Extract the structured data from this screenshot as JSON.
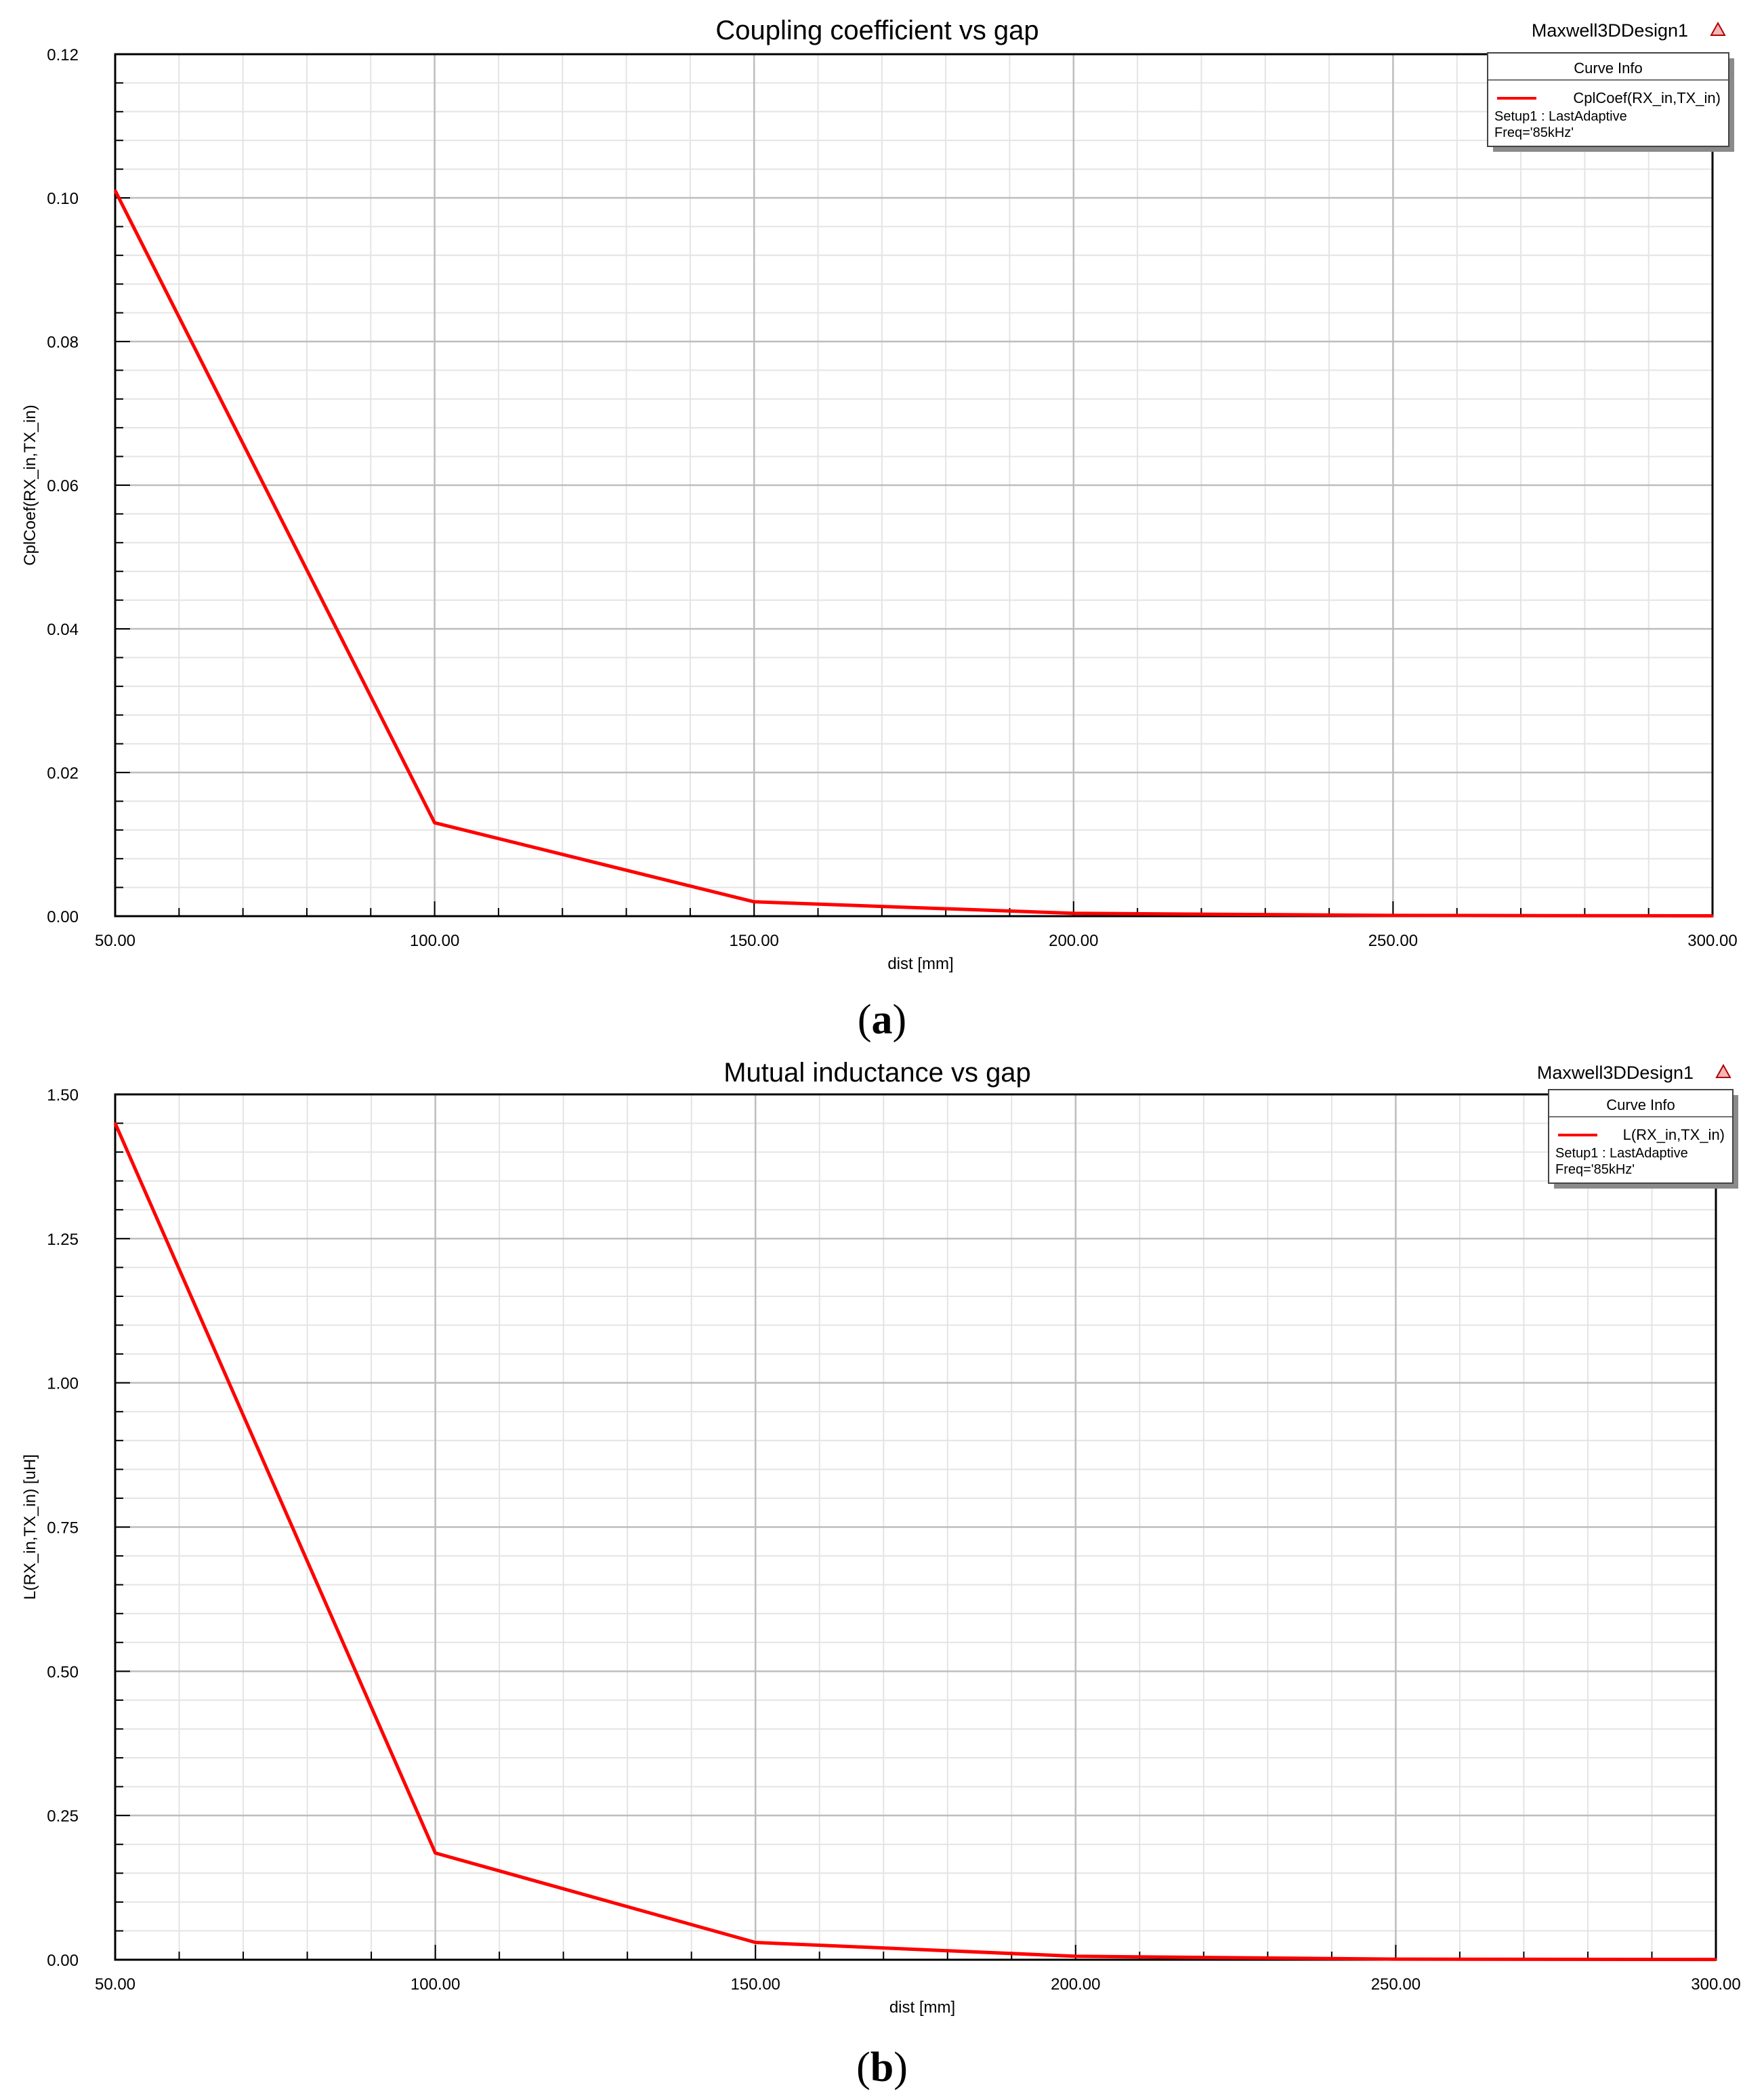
{
  "chart_data": [
    {
      "type": "line",
      "title": "Coupling coefficient vs gap",
      "design_name": "Maxwell3DDesign1",
      "xlabel": "dist [mm]",
      "ylabel": "CplCoef(RX_in,TX_in)",
      "xlim": [
        50,
        300
      ],
      "ylim": [
        0,
        0.12
      ],
      "x_ticks": [
        "50.00",
        "100.00",
        "150.00",
        "200.00",
        "250.00",
        "300.00"
      ],
      "y_ticks": [
        "0.00",
        "0.02",
        "0.04",
        "0.06",
        "0.08",
        "0.10",
        "0.12"
      ],
      "grid": true,
      "legend_position": "top-right",
      "legend": {
        "header": "Curve Info",
        "entry": "CplCoef(RX_in,TX_in)",
        "line2": "Setup1 : LastAdaptive",
        "line3": "Freq='85kHz'"
      },
      "series_color": "#ff0000",
      "series": [
        {
          "name": "CplCoef(RX_in,TX_in)",
          "x": [
            50,
            100,
            150,
            200,
            250,
            300
          ],
          "y": [
            0.101,
            0.013,
            0.002,
            0.0004,
            0.0001,
            5e-05
          ]
        }
      ],
      "sublabel_letter": "a"
    },
    {
      "type": "line",
      "title": "Mutual inductance vs gap",
      "design_name": "Maxwell3DDesign1",
      "xlabel": "dist [mm]",
      "ylabel": "L(RX_in,TX_in) [uH]",
      "xlim": [
        50,
        300
      ],
      "ylim": [
        0,
        1.5
      ],
      "x_ticks": [
        "50.00",
        "100.00",
        "150.00",
        "200.00",
        "250.00",
        "300.00"
      ],
      "y_ticks": [
        "0.00",
        "0.25",
        "0.50",
        "0.75",
        "1.00",
        "1.25",
        "1.50"
      ],
      "grid": true,
      "legend_position": "top-right",
      "legend": {
        "header": "Curve Info",
        "entry": "L(RX_in,TX_in)",
        "line2": "Setup1 : LastAdaptive",
        "line3": "Freq='85kHz'"
      },
      "series_color": "#ff0000",
      "series": [
        {
          "name": "L(RX_in,TX_in)",
          "x": [
            50,
            100,
            150,
            200,
            250,
            300
          ],
          "y": [
            1.45,
            0.185,
            0.03,
            0.006,
            0.001,
            0.0005
          ]
        }
      ],
      "sublabel_letter": "b"
    }
  ]
}
